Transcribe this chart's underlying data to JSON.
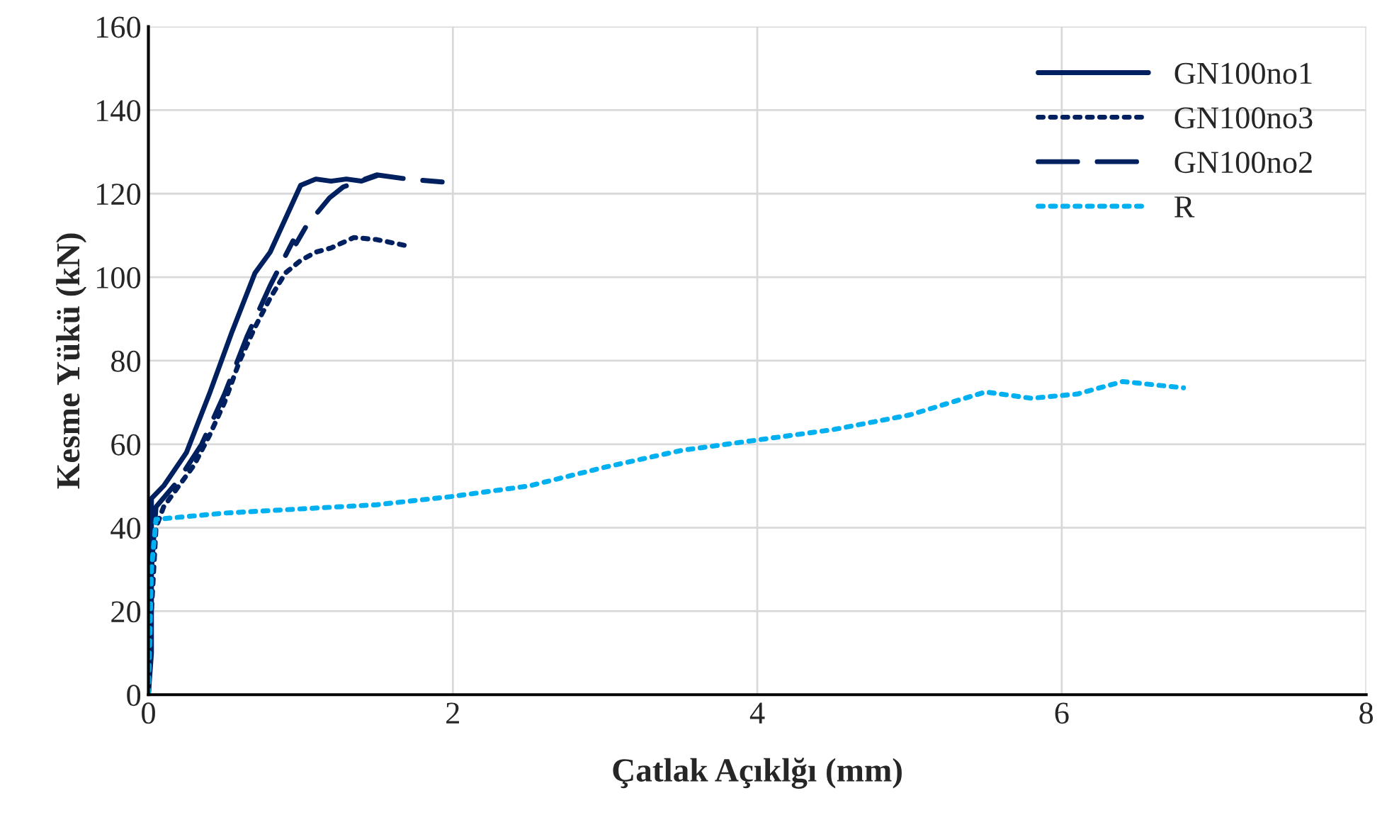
{
  "chart_data": {
    "type": "line",
    "xlabel": "Çatlak Açıklğı (mm)",
    "ylabel": "Kesme Yükü (kN)",
    "xlim": [
      0,
      8
    ],
    "xticks": [
      0,
      2,
      4,
      6,
      8
    ],
    "ylim": [
      0,
      160
    ],
    "yticks": [
      0,
      20,
      40,
      60,
      80,
      100,
      120,
      140,
      160
    ],
    "grid": true,
    "legend": "top right",
    "marker": "none",
    "series": [
      {
        "name": "GN100no1",
        "color": "#002060",
        "line_style": "solid",
        "x": [
          0,
          0.02,
          0.02,
          0.1,
          0.25,
          0.4,
          0.55,
          0.7,
          0.8,
          1.0,
          1.1,
          1.2,
          1.3,
          1.4,
          1.5
        ],
        "values": [
          0,
          10,
          47,
          50,
          58,
          72,
          87,
          101,
          106,
          122,
          123.5,
          123,
          123.5,
          123,
          124.3
        ]
      },
      {
        "name": "GN100no3",
        "color": "#002060",
        "line_style": "dotted",
        "x": [
          0,
          0.02,
          0.05,
          0.1,
          0.2,
          0.3,
          0.4,
          0.5,
          0.6,
          0.7,
          0.8,
          0.9,
          1.0,
          1.1,
          1.2,
          1.35,
          1.5,
          1.7
        ],
        "values": [
          0,
          20,
          40,
          45,
          50,
          55,
          62,
          70,
          80,
          88,
          95,
          101,
          104,
          106,
          107,
          109.5,
          109,
          107.5
        ]
      },
      {
        "name": "GN100no2",
        "color": "#002060",
        "line_style": "dashed",
        "x": [
          0,
          0.02,
          0.05,
          0.19,
          0.35,
          0.5,
          0.65,
          0.8,
          0.95,
          0.97,
          1.04,
          1.19,
          1.28,
          1.5,
          1.7,
          1.93
        ],
        "values": [
          0,
          30,
          45,
          51,
          60,
          72,
          86,
          98,
          108.7,
          108,
          112.4,
          119,
          121.6,
          124.5,
          123.5,
          122.8
        ]
      },
      {
        "name": "R",
        "color": "#00b0f0",
        "line_style": "dotted",
        "x": [
          0,
          0.02,
          0.05,
          0.5,
          1,
          1.5,
          2,
          2.5,
          3,
          3.5,
          4,
          4.5,
          5,
          5.5,
          5.8,
          6.1,
          6.4,
          6.8
        ],
        "values": [
          0,
          30,
          42,
          43.5,
          44.5,
          45.5,
          47.5,
          50,
          54.5,
          58.5,
          61,
          63.5,
          67,
          72.5,
          71,
          72,
          75,
          73.5
        ]
      }
    ]
  }
}
